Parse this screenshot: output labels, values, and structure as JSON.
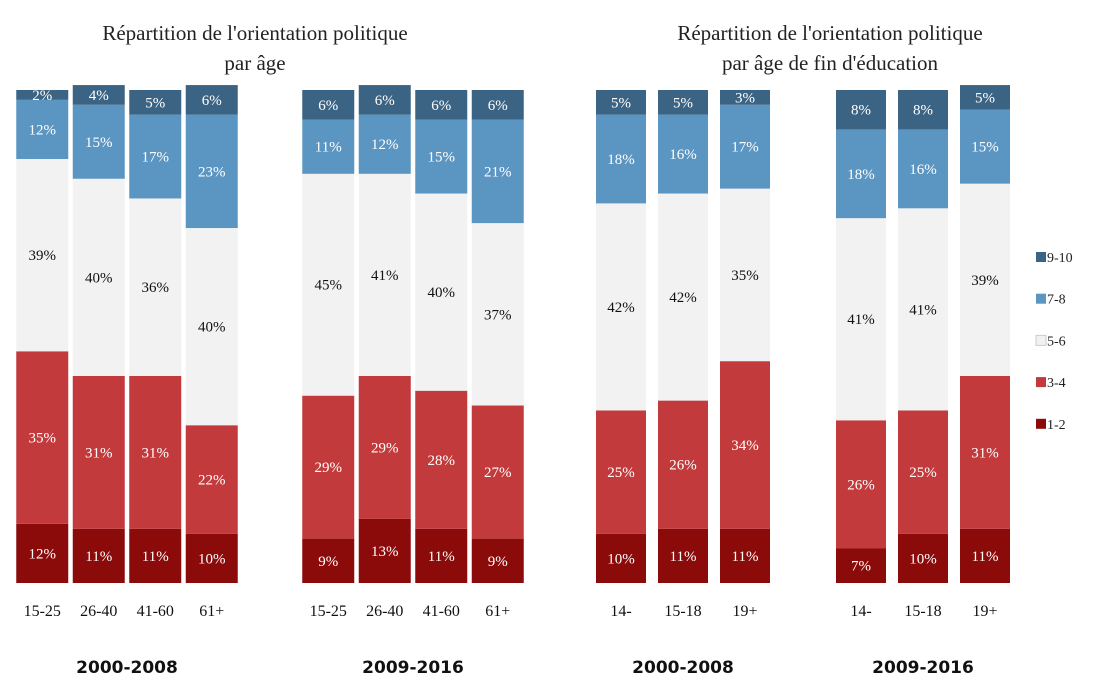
{
  "chart_data": [
    {
      "type": "stacked_bar",
      "title": [
        "Répartition de l'orientation politique",
        "par âge"
      ],
      "categories": [
        "15-25",
        "26-40",
        "41-60",
        "61+",
        "15-25",
        "26-40",
        "41-60",
        "61+"
      ],
      "groups": [
        "2000-2008",
        "2009-2016"
      ],
      "ylim": [
        0,
        100
      ],
      "series": [
        {
          "color": "#8b0a0a",
          "values": [
            12,
            11,
            11,
            10,
            9,
            13,
            11,
            9
          ],
          "value_labels": [
            "12%",
            "11%",
            "11%",
            "10%",
            "9%",
            "13%",
            "11%",
            "9%"
          ]
        },
        {
          "color": "#c23a3b",
          "values": [
            35,
            31,
            31,
            22,
            29,
            29,
            28,
            27
          ],
          "value_labels": [
            "35%",
            "31%",
            "31%",
            "22%",
            "29%",
            "29%",
            "28%",
            "27%"
          ]
        },
        {
          "color": "#f2f2f2",
          "values": [
            39,
            40,
            36,
            40,
            45,
            41,
            40,
            37
          ],
          "value_labels": [
            "39%",
            "40%",
            "36%",
            "40%",
            "45%",
            "41%",
            "40%",
            "37%"
          ]
        },
        {
          "color": "#5b95c2",
          "values": [
            12,
            15,
            17,
            23,
            11,
            12,
            15,
            21
          ],
          "value_labels": [
            "12%",
            "15%",
            "17%",
            "23%",
            "11%",
            "12%",
            "15%",
            "21%"
          ]
        },
        {
          "color": "#3b6383",
          "values": [
            2,
            4,
            5,
            6,
            6,
            6,
            6,
            6
          ],
          "value_labels": [
            "2%",
            "4%",
            "5%",
            "6%",
            "6%",
            "6%",
            "6%",
            "6%"
          ]
        }
      ]
    },
    {
      "type": "stacked_bar",
      "title": [
        "Répartition de l'orientation politique",
        "par âge de fin d'éducation"
      ],
      "categories": [
        "14-",
        "15-18",
        "19+",
        "14-",
        "15-18",
        "19+"
      ],
      "groups": [
        "2000-2008",
        "2009-2016"
      ],
      "ylim": [
        0,
        100
      ],
      "legend": "right",
      "series": [
        {
          "name": "1-2",
          "color": "#8b0a0a",
          "values": [
            10,
            11,
            11,
            7,
            10,
            11
          ],
          "value_labels": [
            "10%",
            "11%",
            "11%",
            "7%",
            "10%",
            "11%"
          ]
        },
        {
          "name": "3-4",
          "color": "#c23a3b",
          "values": [
            25,
            26,
            34,
            26,
            25,
            31
          ],
          "value_labels": [
            "25%",
            "26%",
            "34%",
            "26%",
            "25%",
            "31%"
          ]
        },
        {
          "name": "5-6",
          "color": "#f2f2f2",
          "values": [
            42,
            42,
            35,
            41,
            41,
            39
          ],
          "value_labels": [
            "42%",
            "42%",
            "35%",
            "41%",
            "41%",
            "39%"
          ]
        },
        {
          "name": "7-8",
          "color": "#5b95c2",
          "values": [
            18,
            16,
            17,
            18,
            16,
            15
          ],
          "value_labels": [
            "18%",
            "16%",
            "17%",
            "18%",
            "16%",
            "15%"
          ]
        },
        {
          "name": "9-10",
          "color": "#3b6383",
          "values": [
            5,
            5,
            3,
            8,
            8,
            5
          ],
          "value_labels": [
            "5%",
            "5%",
            "3%",
            "8%",
            "8%",
            "5%"
          ]
        }
      ]
    }
  ]
}
